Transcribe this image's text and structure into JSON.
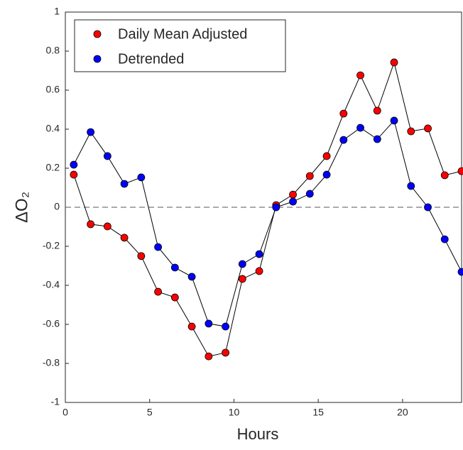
{
  "chart_data": {
    "type": "line",
    "xlabel": "Hours",
    "ylabel": "ΔO₂",
    "x": [
      0.5,
      1.5,
      2.5,
      3.5,
      4.5,
      5.5,
      6.5,
      7.5,
      8.5,
      9.5,
      10.5,
      11.5,
      12.5,
      13.5,
      14.5,
      15.5,
      16.5,
      17.5,
      18.5,
      19.5,
      20.5,
      21.5,
      22.5,
      23.5
    ],
    "series": [
      {
        "name": "Daily Mean Adjusted",
        "color": "#ff0000",
        "values": [
          0.167,
          -0.087,
          -0.098,
          -0.156,
          -0.25,
          -0.433,
          -0.462,
          -0.611,
          -0.764,
          -0.745,
          -0.367,
          -0.327,
          0.011,
          0.065,
          0.16,
          0.262,
          0.48,
          0.676,
          0.495,
          0.742,
          0.389,
          0.404,
          0.164,
          0.185
        ]
      },
      {
        "name": "Detrended",
        "color": "#0000ff",
        "values": [
          0.218,
          0.385,
          0.262,
          0.12,
          0.153,
          -0.204,
          -0.309,
          -0.356,
          -0.596,
          -0.611,
          -0.291,
          -0.24,
          0,
          0.029,
          0.069,
          0.167,
          0.345,
          0.407,
          0.349,
          0.444,
          0.109,
          0,
          -0.164,
          -0.331
        ]
      }
    ],
    "xlim": [
      0,
      23.5
    ],
    "xticks": [
      0,
      5,
      10,
      15,
      20
    ],
    "ylim": [
      -1,
      1
    ],
    "yticks": [
      -1,
      -0.8,
      -0.6,
      -0.4,
      -0.2,
      0,
      0.2,
      0.4,
      0.6,
      0.8,
      1
    ],
    "reference_line": 0,
    "legend": "upper-left"
  }
}
